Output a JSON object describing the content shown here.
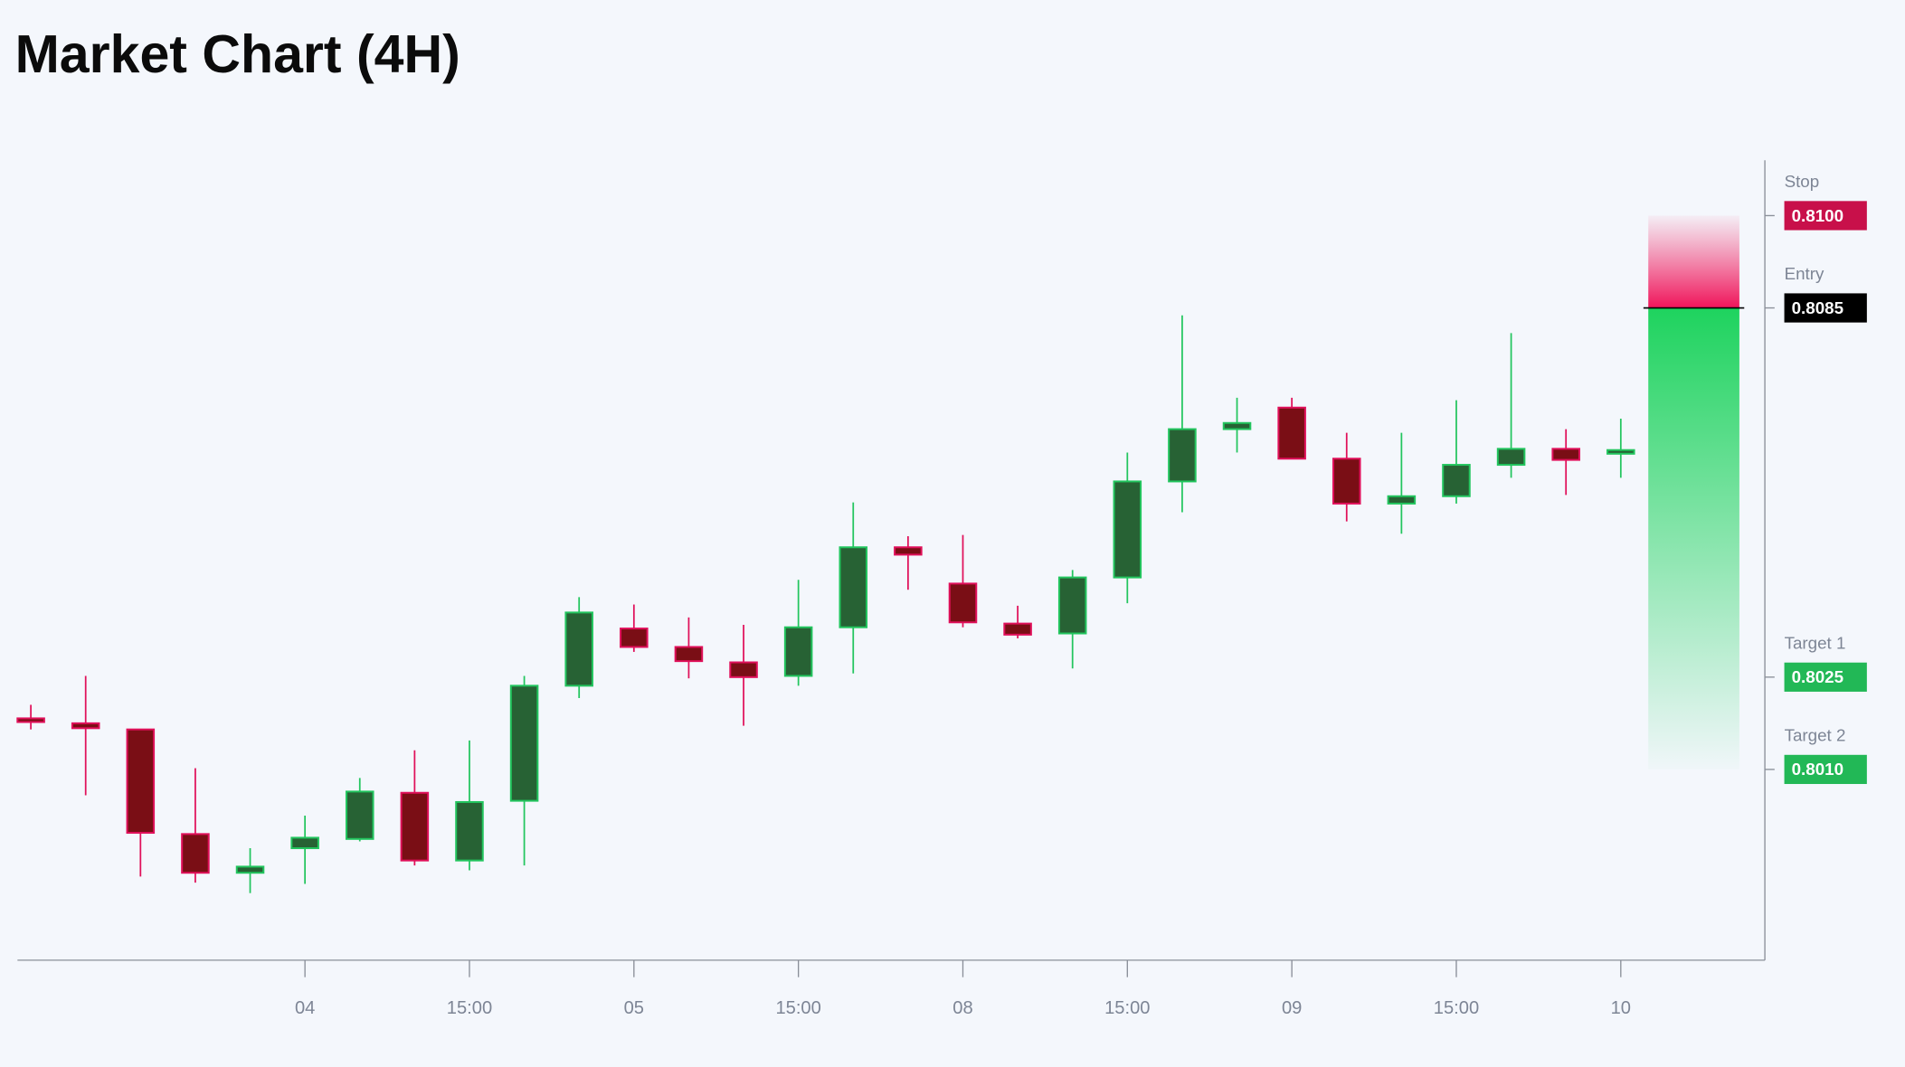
{
  "chart_data": {
    "type": "candlestick",
    "title": "Market Chart (4H)",
    "categories": [
      null,
      null,
      null,
      null,
      null,
      "04",
      null,
      null,
      "15:00",
      null,
      null,
      "05",
      null,
      null,
      "15:00",
      null,
      null,
      "08",
      null,
      null,
      "15:00",
      null,
      null,
      "09",
      null,
      null,
      "15:00",
      null,
      null,
      "10"
    ],
    "open": [
      0.80183,
      0.80175,
      0.80165,
      0.79995,
      0.79932,
      0.79972,
      0.79987,
      0.80062,
      0.79952,
      0.80049,
      0.80236,
      0.80329,
      0.80299,
      0.80274,
      0.80252,
      0.80331,
      0.80461,
      0.80402,
      0.80337,
      0.80321,
      0.80412,
      0.80568,
      0.80653,
      0.80688,
      0.80605,
      0.80532,
      0.80544,
      0.80595,
      0.80621,
      0.80613
    ],
    "high": [
      0.80205,
      0.80252,
      0.80165,
      0.80102,
      0.79972,
      0.80025,
      0.80086,
      0.80131,
      0.80147,
      0.80252,
      0.8038,
      0.80368,
      0.80347,
      0.80335,
      0.80408,
      0.80534,
      0.80479,
      0.80481,
      0.80366,
      0.80424,
      0.80615,
      0.80838,
      0.80704,
      0.80704,
      0.80647,
      0.80647,
      0.807,
      0.80809,
      0.80653,
      0.8067
    ],
    "low": [
      0.80165,
      0.80058,
      0.79926,
      0.79916,
      0.79899,
      0.79914,
      0.79983,
      0.79944,
      0.79936,
      0.79944,
      0.80216,
      0.80291,
      0.80248,
      0.80171,
      0.80236,
      0.80256,
      0.80392,
      0.80331,
      0.80313,
      0.80264,
      0.8037,
      0.80518,
      0.80615,
      0.80605,
      0.80503,
      0.80483,
      0.80532,
      0.80574,
      0.80546,
      0.80574
    ],
    "close": [
      0.80177,
      0.80167,
      0.79997,
      0.79932,
      0.79942,
      0.79989,
      0.80064,
      0.79952,
      0.80047,
      0.80236,
      0.80355,
      0.80299,
      0.80276,
      0.8025,
      0.80331,
      0.80461,
      0.80449,
      0.80339,
      0.80319,
      0.80412,
      0.80568,
      0.80653,
      0.80663,
      0.80605,
      0.80532,
      0.80544,
      0.80595,
      0.80621,
      0.80603,
      0.80619
    ],
    "up_color": "#276234",
    "up_border": "#22c55e",
    "down_color": "#7a0e15",
    "down_border": "#e0105a",
    "ylim": [
      0.7979,
      0.8109
    ],
    "levels": [
      {
        "name": "Stop",
        "value": 0.81,
        "label": "0.8100",
        "color": "#c8104a"
      },
      {
        "name": "Entry",
        "value": 0.8085,
        "label": "0.8085",
        "color": "#000000"
      },
      {
        "name": "Target 1",
        "value": 0.8025,
        "label": "0.8025",
        "color": "#22b856"
      },
      {
        "name": "Target 2",
        "value": 0.801,
        "label": "0.8010",
        "color": "#22b856"
      }
    ]
  }
}
